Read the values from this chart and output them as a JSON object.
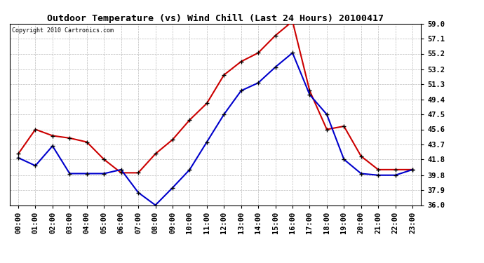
{
  "title": "Outdoor Temperature (vs) Wind Chill (Last 24 Hours) 20100417",
  "copyright": "Copyright 2010 Cartronics.com",
  "hours": [
    "00:00",
    "01:00",
    "02:00",
    "03:00",
    "04:00",
    "05:00",
    "06:00",
    "07:00",
    "08:00",
    "09:00",
    "10:00",
    "11:00",
    "12:00",
    "13:00",
    "14:00",
    "15:00",
    "16:00",
    "17:00",
    "18:00",
    "19:00",
    "20:00",
    "21:00",
    "22:00",
    "23:00"
  ],
  "temp": [
    42.5,
    45.6,
    44.8,
    44.5,
    44.0,
    41.8,
    40.1,
    40.1,
    42.5,
    44.3,
    46.8,
    48.9,
    52.5,
    54.2,
    55.3,
    57.5,
    59.3,
    50.5,
    45.6,
    46.0,
    42.2,
    40.5,
    40.5,
    40.5
  ],
  "wind_chill": [
    42.0,
    41.0,
    43.5,
    40.0,
    40.0,
    40.0,
    40.5,
    37.6,
    36.0,
    38.2,
    40.5,
    44.0,
    47.5,
    50.5,
    51.5,
    53.5,
    55.3,
    50.0,
    47.5,
    41.8,
    40.0,
    39.8,
    39.8,
    40.5
  ],
  "temp_color": "#cc0000",
  "wind_chill_color": "#0000cc",
  "ytick_values": [
    36.0,
    37.9,
    39.8,
    41.8,
    43.7,
    45.6,
    47.5,
    49.4,
    51.3,
    53.2,
    55.2,
    57.1,
    59.0
  ],
  "ymin": 36.0,
  "ymax": 59.0,
  "bg_color": "#ffffff",
  "grid_color": "#bbbbbb",
  "title_fontsize": 9.5,
  "tick_fontsize": 7.5,
  "copyright_fontsize": 6.0
}
